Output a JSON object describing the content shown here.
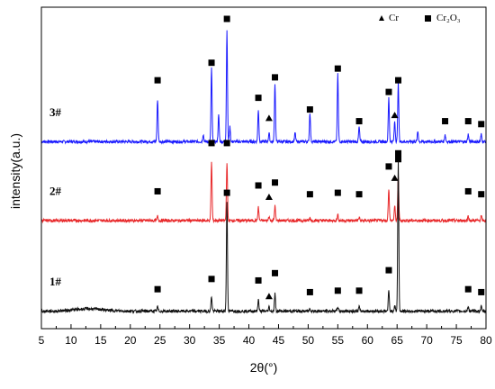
{
  "chart_data": {
    "type": "line",
    "xlabel": "2θ(°)",
    "ylabel": "intensity(a.u.)",
    "xlim": [
      5,
      80
    ],
    "x_ticks": [
      "5",
      "10",
      "15",
      "20",
      "25",
      "30",
      "35",
      "40",
      "45",
      "50",
      "55",
      "60",
      "65",
      "70",
      "75",
      "80"
    ],
    "y_ticks_shown": false,
    "grid": false,
    "legend_position": "top-right",
    "legend": [
      {
        "marker": "triangle",
        "label": "Cr"
      },
      {
        "marker": "square",
        "label": "Cr₂O₃"
      }
    ],
    "series": [
      {
        "name": "3#",
        "color": "#1a1aff",
        "baseline": 6.4,
        "noise": 0.05,
        "peaks": [
          [
            24.6,
            1.45
          ],
          [
            32.3,
            0.25
          ],
          [
            33.7,
            2.5
          ],
          [
            34.9,
            0.9
          ],
          [
            36.3,
            3.8
          ],
          [
            36.8,
            0.5
          ],
          [
            41.6,
            1.1
          ],
          [
            43.4,
            0.3
          ],
          [
            44.4,
            2.0
          ],
          [
            47.8,
            0.3
          ],
          [
            50.3,
            1.0
          ],
          [
            55.0,
            2.3
          ],
          [
            58.6,
            0.5
          ],
          [
            63.6,
            1.5
          ],
          [
            64.6,
            0.7
          ],
          [
            65.2,
            2.0
          ],
          [
            68.5,
            0.35
          ],
          [
            73.1,
            0.25
          ],
          [
            77.0,
            0.25
          ],
          [
            79.2,
            0.25
          ]
        ],
        "cr2o3_markers": [
          [
            24.6,
            8.5
          ],
          [
            33.7,
            9.1
          ],
          [
            36.3,
            10.6
          ],
          [
            41.6,
            7.9
          ],
          [
            44.4,
            8.6
          ],
          [
            50.3,
            7.5
          ],
          [
            55.0,
            8.9
          ],
          [
            58.6,
            7.1
          ],
          [
            63.6,
            8.1
          ],
          [
            65.2,
            8.5
          ],
          [
            73.1,
            7.1
          ],
          [
            77.0,
            7.1
          ],
          [
            79.2,
            7.0
          ]
        ],
        "cr_markers": [
          [
            43.4,
            7.2
          ],
          [
            64.6,
            7.3
          ]
        ]
      },
      {
        "name": "2#",
        "color": "#e8282a",
        "baseline": 3.7,
        "noise": 0.05,
        "peaks": [
          [
            24.6,
            0.15
          ],
          [
            33.7,
            2.0
          ],
          [
            36.3,
            2.0
          ],
          [
            41.6,
            0.45
          ],
          [
            43.4,
            0.15
          ],
          [
            44.4,
            0.5
          ],
          [
            50.3,
            0.1
          ],
          [
            55.0,
            0.2
          ],
          [
            58.6,
            0.1
          ],
          [
            63.6,
            1.1
          ],
          [
            64.6,
            0.5
          ],
          [
            65.2,
            1.5
          ],
          [
            77.0,
            0.15
          ],
          [
            79.2,
            0.15
          ]
        ],
        "cr2o3_markers": [
          [
            24.6,
            4.7
          ],
          [
            33.7,
            6.35
          ],
          [
            36.3,
            6.35
          ],
          [
            41.6,
            4.9
          ],
          [
            44.4,
            5.0
          ],
          [
            50.3,
            4.6
          ],
          [
            55.0,
            4.65
          ],
          [
            58.6,
            4.6
          ],
          [
            63.6,
            5.55
          ],
          [
            65.2,
            5.8
          ],
          [
            77.0,
            4.7
          ],
          [
            79.2,
            4.6
          ]
        ],
        "cr_markers": [
          [
            43.4,
            4.5
          ],
          [
            64.6,
            5.15
          ]
        ]
      },
      {
        "name": "1#",
        "color": "#111111",
        "baseline": 0.6,
        "noise": 0.05,
        "peaks": [
          [
            24.6,
            0.15
          ],
          [
            33.7,
            0.5
          ],
          [
            36.3,
            3.75
          ],
          [
            41.6,
            0.4
          ],
          [
            43.4,
            0.15
          ],
          [
            44.4,
            0.6
          ],
          [
            50.3,
            0.1
          ],
          [
            55.0,
            0.15
          ],
          [
            58.6,
            0.15
          ],
          [
            63.6,
            0.7
          ],
          [
            64.6,
            0.2
          ],
          [
            65.2,
            5.1
          ],
          [
            77.0,
            0.15
          ],
          [
            79.2,
            0.15
          ]
        ],
        "cr2o3_markers": [
          [
            24.6,
            1.35
          ],
          [
            33.7,
            1.7
          ],
          [
            36.3,
            4.65
          ],
          [
            41.6,
            1.65
          ],
          [
            44.4,
            1.9
          ],
          [
            50.3,
            1.25
          ],
          [
            55.0,
            1.3
          ],
          [
            58.6,
            1.3
          ],
          [
            63.6,
            2.0
          ],
          [
            65.2,
            6.0
          ],
          [
            77.0,
            1.35
          ],
          [
            79.2,
            1.25
          ]
        ],
        "cr_markers": [
          [
            43.4,
            1.1
          ]
        ]
      }
    ]
  }
}
